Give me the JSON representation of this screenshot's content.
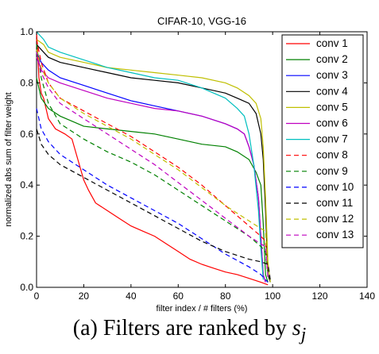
{
  "chart_data": {
    "type": "line",
    "title": "CIFAR-10, VGG-16",
    "xlabel": "filter index / # filters (%)",
    "ylabel": "normalized abs sum of filter weight",
    "xlim": [
      0,
      140
    ],
    "ylim": [
      0,
      1.0
    ],
    "xticks": [
      "0",
      "20",
      "40",
      "60",
      "80",
      "100",
      "120",
      "140"
    ],
    "yticks": [
      "0.0",
      "0.2",
      "0.4",
      "0.6",
      "0.8",
      "1.0"
    ],
    "grid": false,
    "legend_position": "top-right",
    "series": [
      {
        "name": "conv 1",
        "color": "#ff0000",
        "dash": "solid",
        "points": [
          [
            0,
            1.0
          ],
          [
            1,
            0.82
          ],
          [
            2,
            0.76
          ],
          [
            3,
            0.74
          ],
          [
            5,
            0.66
          ],
          [
            8,
            0.62
          ],
          [
            12,
            0.6
          ],
          [
            15,
            0.58
          ],
          [
            20,
            0.42
          ],
          [
            22,
            0.38
          ],
          [
            25,
            0.33
          ],
          [
            30,
            0.3
          ],
          [
            35,
            0.27
          ],
          [
            40,
            0.24
          ],
          [
            45,
            0.22
          ],
          [
            50,
            0.2
          ],
          [
            55,
            0.17
          ],
          [
            60,
            0.14
          ],
          [
            65,
            0.11
          ],
          [
            70,
            0.09
          ],
          [
            75,
            0.075
          ],
          [
            80,
            0.06
          ],
          [
            85,
            0.05
          ],
          [
            90,
            0.035
          ],
          [
            95,
            0.02
          ],
          [
            98,
            0.01
          ]
        ]
      },
      {
        "name": "conv 2",
        "color": "#008000",
        "dash": "solid",
        "points": [
          [
            0,
            0.82
          ],
          [
            2,
            0.74
          ],
          [
            5,
            0.7
          ],
          [
            10,
            0.67
          ],
          [
            15,
            0.65
          ],
          [
            20,
            0.63
          ],
          [
            30,
            0.62
          ],
          [
            40,
            0.61
          ],
          [
            50,
            0.6
          ],
          [
            60,
            0.58
          ],
          [
            70,
            0.56
          ],
          [
            80,
            0.55
          ],
          [
            85,
            0.53
          ],
          [
            90,
            0.5
          ],
          [
            93,
            0.45
          ],
          [
            95,
            0.4
          ],
          [
            96,
            0.25
          ],
          [
            97,
            0.05
          ],
          [
            98,
            0.02
          ]
        ]
      },
      {
        "name": "conv 3",
        "color": "#0000ff",
        "dash": "solid",
        "points": [
          [
            0,
            0.92
          ],
          [
            2,
            0.88
          ],
          [
            5,
            0.85
          ],
          [
            10,
            0.82
          ],
          [
            20,
            0.79
          ],
          [
            30,
            0.76
          ],
          [
            40,
            0.73
          ],
          [
            50,
            0.71
          ],
          [
            60,
            0.69
          ],
          [
            70,
            0.67
          ],
          [
            80,
            0.64
          ],
          [
            85,
            0.62
          ],
          [
            88,
            0.6
          ],
          [
            90,
            0.55
          ],
          [
            92,
            0.48
          ],
          [
            94,
            0.35
          ],
          [
            95,
            0.2
          ],
          [
            96,
            0.05
          ],
          [
            97,
            0.02
          ]
        ]
      },
      {
        "name": "conv 4",
        "color": "#000000",
        "dash": "solid",
        "points": [
          [
            0,
            0.95
          ],
          [
            3,
            0.92
          ],
          [
            5,
            0.9
          ],
          [
            10,
            0.88
          ],
          [
            20,
            0.86
          ],
          [
            30,
            0.84
          ],
          [
            40,
            0.82
          ],
          [
            50,
            0.81
          ],
          [
            60,
            0.8
          ],
          [
            70,
            0.78
          ],
          [
            80,
            0.76
          ],
          [
            85,
            0.74
          ],
          [
            90,
            0.72
          ],
          [
            93,
            0.68
          ],
          [
            95,
            0.6
          ],
          [
            96,
            0.5
          ],
          [
            97,
            0.3
          ],
          [
            98,
            0.05
          ],
          [
            99,
            0.02
          ]
        ]
      },
      {
        "name": "conv 5",
        "color": "#bfbf00",
        "dash": "solid",
        "points": [
          [
            0,
            0.97
          ],
          [
            3,
            0.95
          ],
          [
            5,
            0.92
          ],
          [
            10,
            0.9
          ],
          [
            20,
            0.88
          ],
          [
            30,
            0.86
          ],
          [
            40,
            0.85
          ],
          [
            50,
            0.84
          ],
          [
            60,
            0.83
          ],
          [
            70,
            0.82
          ],
          [
            80,
            0.8
          ],
          [
            85,
            0.78
          ],
          [
            90,
            0.75
          ],
          [
            93,
            0.72
          ],
          [
            95,
            0.66
          ],
          [
            96,
            0.55
          ],
          [
            97,
            0.35
          ],
          [
            98,
            0.1
          ],
          [
            99,
            0.02
          ]
        ]
      },
      {
        "name": "conv 6",
        "color": "#bf00bf",
        "dash": "solid",
        "points": [
          [
            0,
            0.9
          ],
          [
            2,
            0.85
          ],
          [
            5,
            0.82
          ],
          [
            10,
            0.8
          ],
          [
            20,
            0.77
          ],
          [
            30,
            0.74
          ],
          [
            40,
            0.72
          ],
          [
            50,
            0.7
          ],
          [
            60,
            0.69
          ],
          [
            70,
            0.67
          ],
          [
            80,
            0.64
          ],
          [
            85,
            0.62
          ],
          [
            88,
            0.6
          ],
          [
            90,
            0.55
          ],
          [
            92,
            0.48
          ],
          [
            94,
            0.35
          ],
          [
            95,
            0.2
          ],
          [
            96,
            0.05
          ],
          [
            97,
            0.02
          ]
        ]
      },
      {
        "name": "conv 7",
        "color": "#00bfbf",
        "dash": "solid",
        "points": [
          [
            0,
            1.0
          ],
          [
            3,
            0.97
          ],
          [
            5,
            0.94
          ],
          [
            10,
            0.92
          ],
          [
            20,
            0.89
          ],
          [
            30,
            0.86
          ],
          [
            40,
            0.84
          ],
          [
            50,
            0.82
          ],
          [
            60,
            0.81
          ],
          [
            70,
            0.78
          ],
          [
            80,
            0.74
          ],
          [
            85,
            0.7
          ],
          [
            88,
            0.67
          ],
          [
            90,
            0.6
          ],
          [
            92,
            0.48
          ],
          [
            94,
            0.3
          ],
          [
            95,
            0.15
          ],
          [
            96,
            0.03
          ]
        ]
      },
      {
        "name": "conv 8",
        "color": "#ff0000",
        "dash": "dashed",
        "points": [
          [
            0,
            0.97
          ],
          [
            2,
            0.88
          ],
          [
            5,
            0.8
          ],
          [
            10,
            0.74
          ],
          [
            20,
            0.69
          ],
          [
            30,
            0.64
          ],
          [
            40,
            0.59
          ],
          [
            50,
            0.53
          ],
          [
            60,
            0.47
          ],
          [
            70,
            0.4
          ],
          [
            80,
            0.32
          ],
          [
            90,
            0.24
          ],
          [
            95,
            0.2
          ],
          [
            97,
            0.18
          ],
          [
            98,
            0.05
          ]
        ]
      },
      {
        "name": "conv 9",
        "color": "#008000",
        "dash": "dashed",
        "points": [
          [
            0,
            0.95
          ],
          [
            2,
            0.82
          ],
          [
            5,
            0.72
          ],
          [
            10,
            0.64
          ],
          [
            20,
            0.58
          ],
          [
            30,
            0.53
          ],
          [
            40,
            0.49
          ],
          [
            50,
            0.44
          ],
          [
            60,
            0.38
          ],
          [
            70,
            0.32
          ],
          [
            80,
            0.26
          ],
          [
            90,
            0.2
          ],
          [
            95,
            0.16
          ],
          [
            97,
            0.14
          ],
          [
            98,
            0.05
          ]
        ]
      },
      {
        "name": "conv 10",
        "color": "#0000ff",
        "dash": "dashed",
        "points": [
          [
            0,
            0.7
          ],
          [
            2,
            0.62
          ],
          [
            5,
            0.57
          ],
          [
            10,
            0.52
          ],
          [
            20,
            0.46
          ],
          [
            30,
            0.4
          ],
          [
            40,
            0.35
          ],
          [
            50,
            0.3
          ],
          [
            60,
            0.25
          ],
          [
            70,
            0.19
          ],
          [
            80,
            0.13
          ],
          [
            90,
            0.08
          ],
          [
            95,
            0.05
          ],
          [
            98,
            0.02
          ]
        ]
      },
      {
        "name": "conv 11",
        "color": "#000000",
        "dash": "dashed",
        "points": [
          [
            0,
            0.62
          ],
          [
            2,
            0.56
          ],
          [
            5,
            0.52
          ],
          [
            10,
            0.48
          ],
          [
            20,
            0.43
          ],
          [
            30,
            0.38
          ],
          [
            40,
            0.33
          ],
          [
            50,
            0.28
          ],
          [
            60,
            0.23
          ],
          [
            70,
            0.18
          ],
          [
            80,
            0.14
          ],
          [
            90,
            0.11
          ],
          [
            95,
            0.1
          ],
          [
            98,
            0.09
          ],
          [
            99,
            0.03
          ]
        ]
      },
      {
        "name": "conv 12",
        "color": "#bfbf00",
        "dash": "dashed",
        "points": [
          [
            0,
            0.93
          ],
          [
            2,
            0.86
          ],
          [
            5,
            0.8
          ],
          [
            10,
            0.74
          ],
          [
            20,
            0.68
          ],
          [
            30,
            0.63
          ],
          [
            40,
            0.58
          ],
          [
            50,
            0.52
          ],
          [
            60,
            0.46
          ],
          [
            70,
            0.39
          ],
          [
            80,
            0.32
          ],
          [
            90,
            0.26
          ],
          [
            95,
            0.23
          ],
          [
            97,
            0.22
          ],
          [
            98,
            0.05
          ]
        ]
      },
      {
        "name": "conv 13",
        "color": "#bf00bf",
        "dash": "dashed",
        "points": [
          [
            0,
            0.92
          ],
          [
            2,
            0.84
          ],
          [
            5,
            0.78
          ],
          [
            10,
            0.72
          ],
          [
            20,
            0.66
          ],
          [
            30,
            0.6
          ],
          [
            40,
            0.54
          ],
          [
            50,
            0.48
          ],
          [
            60,
            0.41
          ],
          [
            70,
            0.34
          ],
          [
            80,
            0.27
          ],
          [
            90,
            0.2
          ],
          [
            95,
            0.17
          ],
          [
            97,
            0.16
          ],
          [
            98,
            0.04
          ]
        ]
      }
    ]
  },
  "caption": {
    "prefix": "(a) Filters are ranked by ",
    "symbol": "s",
    "subscript": "j"
  }
}
